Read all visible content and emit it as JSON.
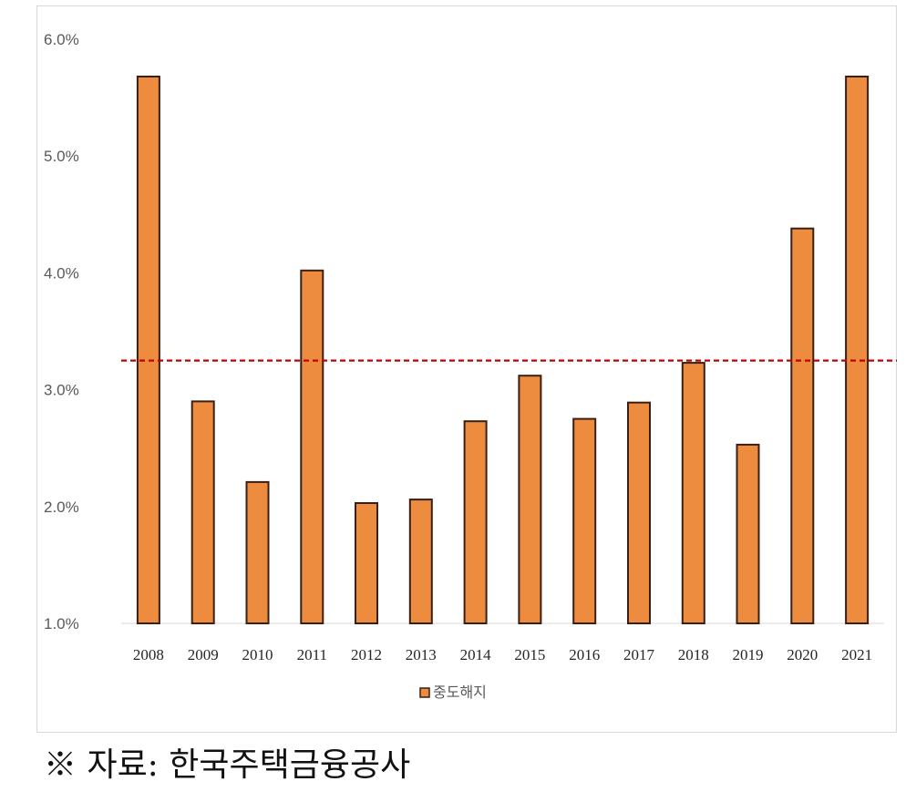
{
  "chart_data": {
    "type": "bar",
    "categories": [
      "2008",
      "2009",
      "2010",
      "2011",
      "2012",
      "2013",
      "2014",
      "2015",
      "2016",
      "2017",
      "2018",
      "2019",
      "2020",
      "2021"
    ],
    "series": [
      {
        "name": "중도해지",
        "values": [
          5.68,
          2.9,
          2.21,
          4.02,
          2.03,
          2.06,
          2.73,
          3.12,
          2.75,
          2.89,
          3.23,
          2.53,
          4.38,
          5.68
        ],
        "color": "#ED8B3F",
        "stroke": "#3A1F14"
      }
    ],
    "reference_line": {
      "value": 3.25,
      "style": "dashed",
      "color": "#C00000"
    },
    "ylim": [
      1.0,
      6.0
    ],
    "yticks": [
      1.0,
      2.0,
      3.0,
      4.0,
      5.0,
      6.0
    ],
    "ytick_labels": [
      "1.0%",
      "2.0%",
      "3.0%",
      "4.0%",
      "5.0%",
      "6.0%"
    ],
    "title": "",
    "xlabel": "",
    "ylabel": "",
    "grid": false,
    "legend_position": "bottom"
  },
  "source_note": "※ 자료: 한국주택금융공사"
}
